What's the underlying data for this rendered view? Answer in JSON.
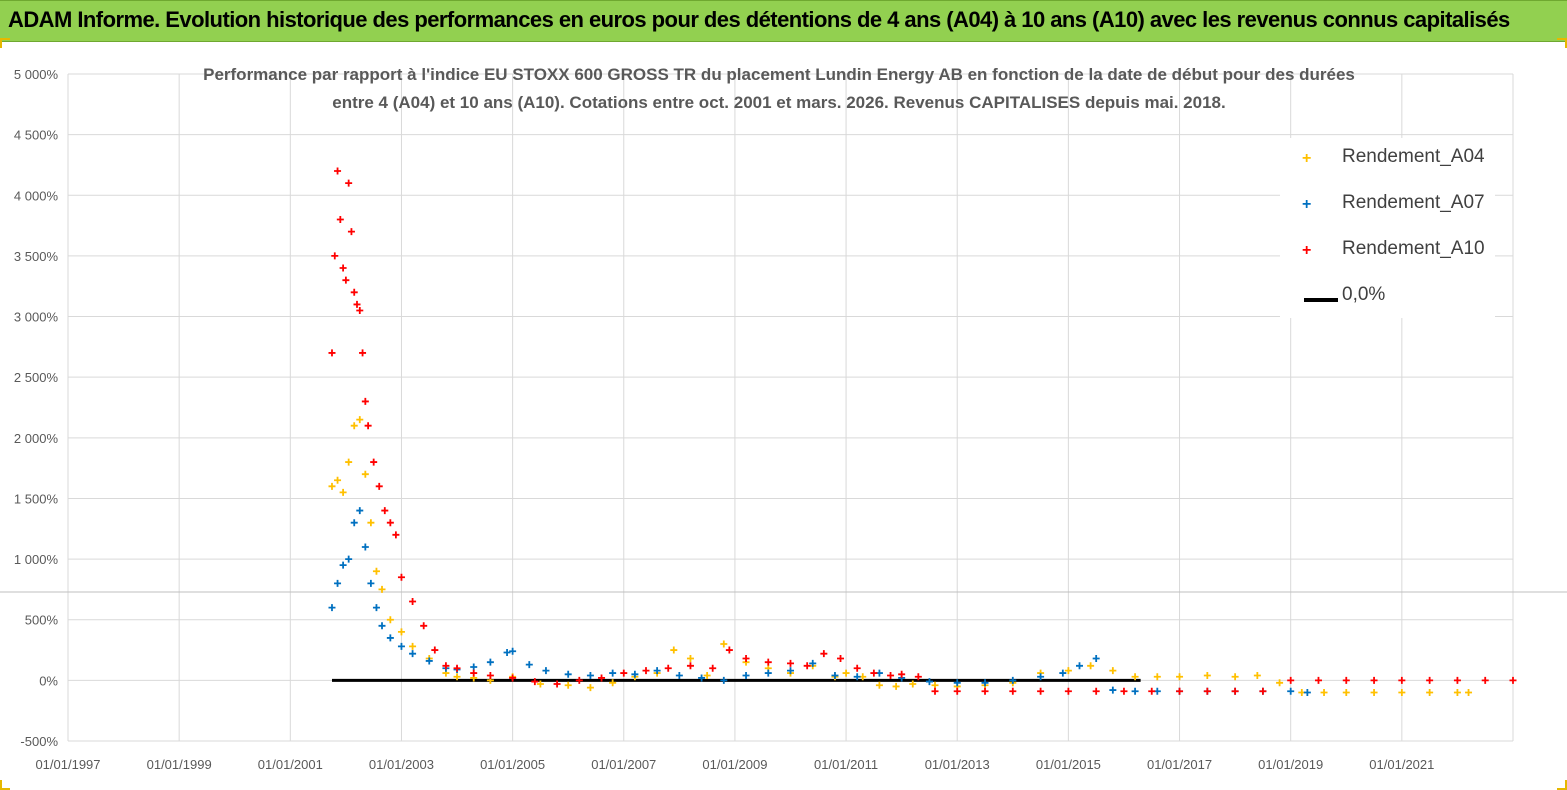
{
  "banner": {
    "title": "ADAM Informe. Evolution historique des performances en euros pour des détentions de 4 ans (A04) à 10 ans (A10) avec les revenus connus capitalisés"
  },
  "colors": {
    "banner_bg": "#92d050",
    "a04": "#ffc000",
    "a07": "#0070c0",
    "a10": "#ff0000",
    "zero": "#000000",
    "grid": "#d9d9d9",
    "axis_text": "#595959"
  },
  "chart_data": {
    "type": "scatter",
    "title_line1": "Performance par rapport à l'indice EU STOXX 600 GROSS TR  du placement Lundin Energy AB en fonction de la date de début pour des durées",
    "title_line2": "entre 4 (A04) et 10 ans (A10). Cotations entre oct. 2001 et mars. 2026. Revenus CAPITALISES depuis mai. 2018.",
    "x_range": [
      1997.0,
      2023.0
    ],
    "x_ticks": [
      {
        "value": 1997.0,
        "label": "01/01/1997"
      },
      {
        "value": 1999.0,
        "label": "01/01/1999"
      },
      {
        "value": 2001.0,
        "label": "01/01/2001"
      },
      {
        "value": 2003.0,
        "label": "01/01/2003"
      },
      {
        "value": 2005.0,
        "label": "01/01/2005"
      },
      {
        "value": 2007.0,
        "label": "01/01/2007"
      },
      {
        "value": 2009.0,
        "label": "01/01/2009"
      },
      {
        "value": 2011.0,
        "label": "01/01/2011"
      },
      {
        "value": 2013.0,
        "label": "01/01/2013"
      },
      {
        "value": 2015.0,
        "label": "01/01/2015"
      },
      {
        "value": 2017.0,
        "label": "01/01/2017"
      },
      {
        "value": 2019.0,
        "label": "01/01/2019"
      },
      {
        "value": 2021.0,
        "label": "01/01/2021"
      }
    ],
    "y_range": [
      -500,
      5000
    ],
    "y_ticks": [
      {
        "value": -500,
        "label": "-500%"
      },
      {
        "value": 0,
        "label": "0%"
      },
      {
        "value": 500,
        "label": "500%"
      },
      {
        "value": 1000,
        "label": "1 000%"
      },
      {
        "value": 1500,
        "label": "1 500%"
      },
      {
        "value": 2000,
        "label": "2 000%"
      },
      {
        "value": 2500,
        "label": "2 500%"
      },
      {
        "value": 3000,
        "label": "3 000%"
      },
      {
        "value": 3500,
        "label": "3 500%"
      },
      {
        "value": 4000,
        "label": "4 000%"
      },
      {
        "value": 4500,
        "label": "4 500%"
      },
      {
        "value": 5000,
        "label": "5 000%"
      }
    ],
    "legend_position": "top-right",
    "series": [
      {
        "name": "Rendement_A04",
        "marker": "+",
        "color": "#ffc000",
        "x": [
          2001.75,
          2001.85,
          2001.95,
          2002.05,
          2002.15,
          2002.25,
          2002.35,
          2002.45,
          2002.55,
          2002.65,
          2002.8,
          2003.0,
          2003.2,
          2003.5,
          2003.8,
          2004.0,
          2004.3,
          2004.6,
          2005.0,
          2005.5,
          2006.0,
          2006.4,
          2006.8,
          2007.2,
          2007.6,
          2007.9,
          2008.2,
          2008.5,
          2008.8,
          2009.2,
          2009.6,
          2010.0,
          2010.4,
          2010.8,
          2011.0,
          2011.3,
          2011.6,
          2011.9,
          2012.2,
          2012.6,
          2013.0,
          2013.5,
          2014.0,
          2014.5,
          2015.0,
          2015.4,
          2015.8,
          2016.2,
          2016.6,
          2017.0,
          2017.5,
          2018.0,
          2018.4,
          2018.8,
          2019.2,
          2019.6,
          2020.0,
          2020.5,
          2021.0,
          2021.5,
          2022.0,
          2022.2
        ],
        "y": [
          1600,
          1650,
          1550,
          1800,
          2100,
          2150,
          1700,
          1300,
          900,
          750,
          500,
          400,
          280,
          180,
          60,
          30,
          20,
          0,
          30,
          -30,
          -40,
          -60,
          -20,
          30,
          60,
          250,
          180,
          40,
          300,
          150,
          100,
          60,
          120,
          30,
          60,
          30,
          -40,
          -50,
          -30,
          -40,
          -50,
          -40,
          -20,
          60,
          80,
          120,
          80,
          30,
          30,
          30,
          40,
          30,
          40,
          -20,
          -100,
          -100,
          -100,
          -100,
          -100,
          -100,
          -100,
          -100
        ]
      },
      {
        "name": "Rendement_A07",
        "marker": "+",
        "color": "#0070c0",
        "x": [
          2001.75,
          2001.85,
          2001.95,
          2002.05,
          2002.15,
          2002.25,
          2002.35,
          2002.45,
          2002.55,
          2002.65,
          2002.8,
          2003.0,
          2003.2,
          2003.5,
          2003.8,
          2004.0,
          2004.3,
          2004.6,
          2004.9,
          2005.0,
          2005.3,
          2005.6,
          2006.0,
          2006.4,
          2006.8,
          2007.2,
          2007.6,
          2008.0,
          2008.4,
          2008.8,
          2009.2,
          2009.6,
          2010.0,
          2010.4,
          2010.8,
          2011.2,
          2011.6,
          2012.0,
          2012.5,
          2013.0,
          2013.5,
          2014.0,
          2014.5,
          2014.9,
          2015.2,
          2015.5,
          2015.8,
          2016.2,
          2016.6,
          2017.0,
          2017.5,
          2018.0,
          2018.5,
          2019.0,
          2019.3
        ],
        "y": [
          600,
          800,
          950,
          1000,
          1300,
          1400,
          1100,
          800,
          600,
          450,
          350,
          280,
          220,
          160,
          100,
          90,
          110,
          150,
          230,
          240,
          130,
          80,
          50,
          40,
          60,
          50,
          80,
          40,
          20,
          0,
          40,
          60,
          80,
          140,
          40,
          30,
          60,
          20,
          -10,
          -20,
          -20,
          0,
          30,
          60,
          120,
          180,
          -80,
          -90,
          -90,
          -90,
          -90,
          -90,
          -90,
          -90,
          -100
        ]
      },
      {
        "name": "Rendement_A10",
        "marker": "+",
        "color": "#ff0000",
        "x": [
          2001.75,
          2001.8,
          2001.85,
          2001.9,
          2001.95,
          2002.0,
          2002.05,
          2002.1,
          2002.15,
          2002.2,
          2002.25,
          2002.3,
          2002.35,
          2002.4,
          2002.5,
          2002.6,
          2002.7,
          2002.8,
          2002.9,
          2003.0,
          2003.2,
          2003.4,
          2003.6,
          2003.8,
          2004.0,
          2004.3,
          2004.6,
          2005.0,
          2005.4,
          2005.8,
          2006.2,
          2006.6,
          2007.0,
          2007.4,
          2007.8,
          2008.2,
          2008.6,
          2008.9,
          2009.2,
          2009.6,
          2010.0,
          2010.3,
          2010.6,
          2010.9,
          2011.2,
          2011.5,
          2011.8,
          2012.0,
          2012.3,
          2012.6,
          2013.0,
          2013.5,
          2014.0,
          2014.5,
          2015.0,
          2015.5,
          2016.0,
          2016.5,
          2017.0,
          2017.5,
          2018.0,
          2018.5,
          2019.0,
          2019.5,
          2020.0,
          2020.5,
          2021.0,
          2021.5,
          2022.0,
          2022.5,
          2023.0
        ],
        "y": [
          2700,
          3500,
          4200,
          3800,
          3400,
          3300,
          4100,
          3700,
          3200,
          3100,
          3050,
          2700,
          2300,
          2100,
          1800,
          1600,
          1400,
          1300,
          1200,
          850,
          650,
          450,
          250,
          120,
          100,
          60,
          40,
          20,
          -10,
          -30,
          0,
          20,
          60,
          80,
          100,
          120,
          100,
          250,
          180,
          150,
          140,
          120,
          220,
          180,
          100,
          60,
          40,
          50,
          30,
          -90,
          -90,
          -90,
          -90,
          -90,
          -90,
          -90,
          -90,
          -90,
          -90,
          -90,
          -90,
          -90,
          0,
          0,
          0,
          0,
          0,
          0,
          0,
          0,
          0
        ]
      }
    ],
    "reference_line": {
      "name": "0,0%",
      "x_start": 2001.75,
      "x_end": 2016.3,
      "y": 0,
      "color": "#000000"
    }
  }
}
